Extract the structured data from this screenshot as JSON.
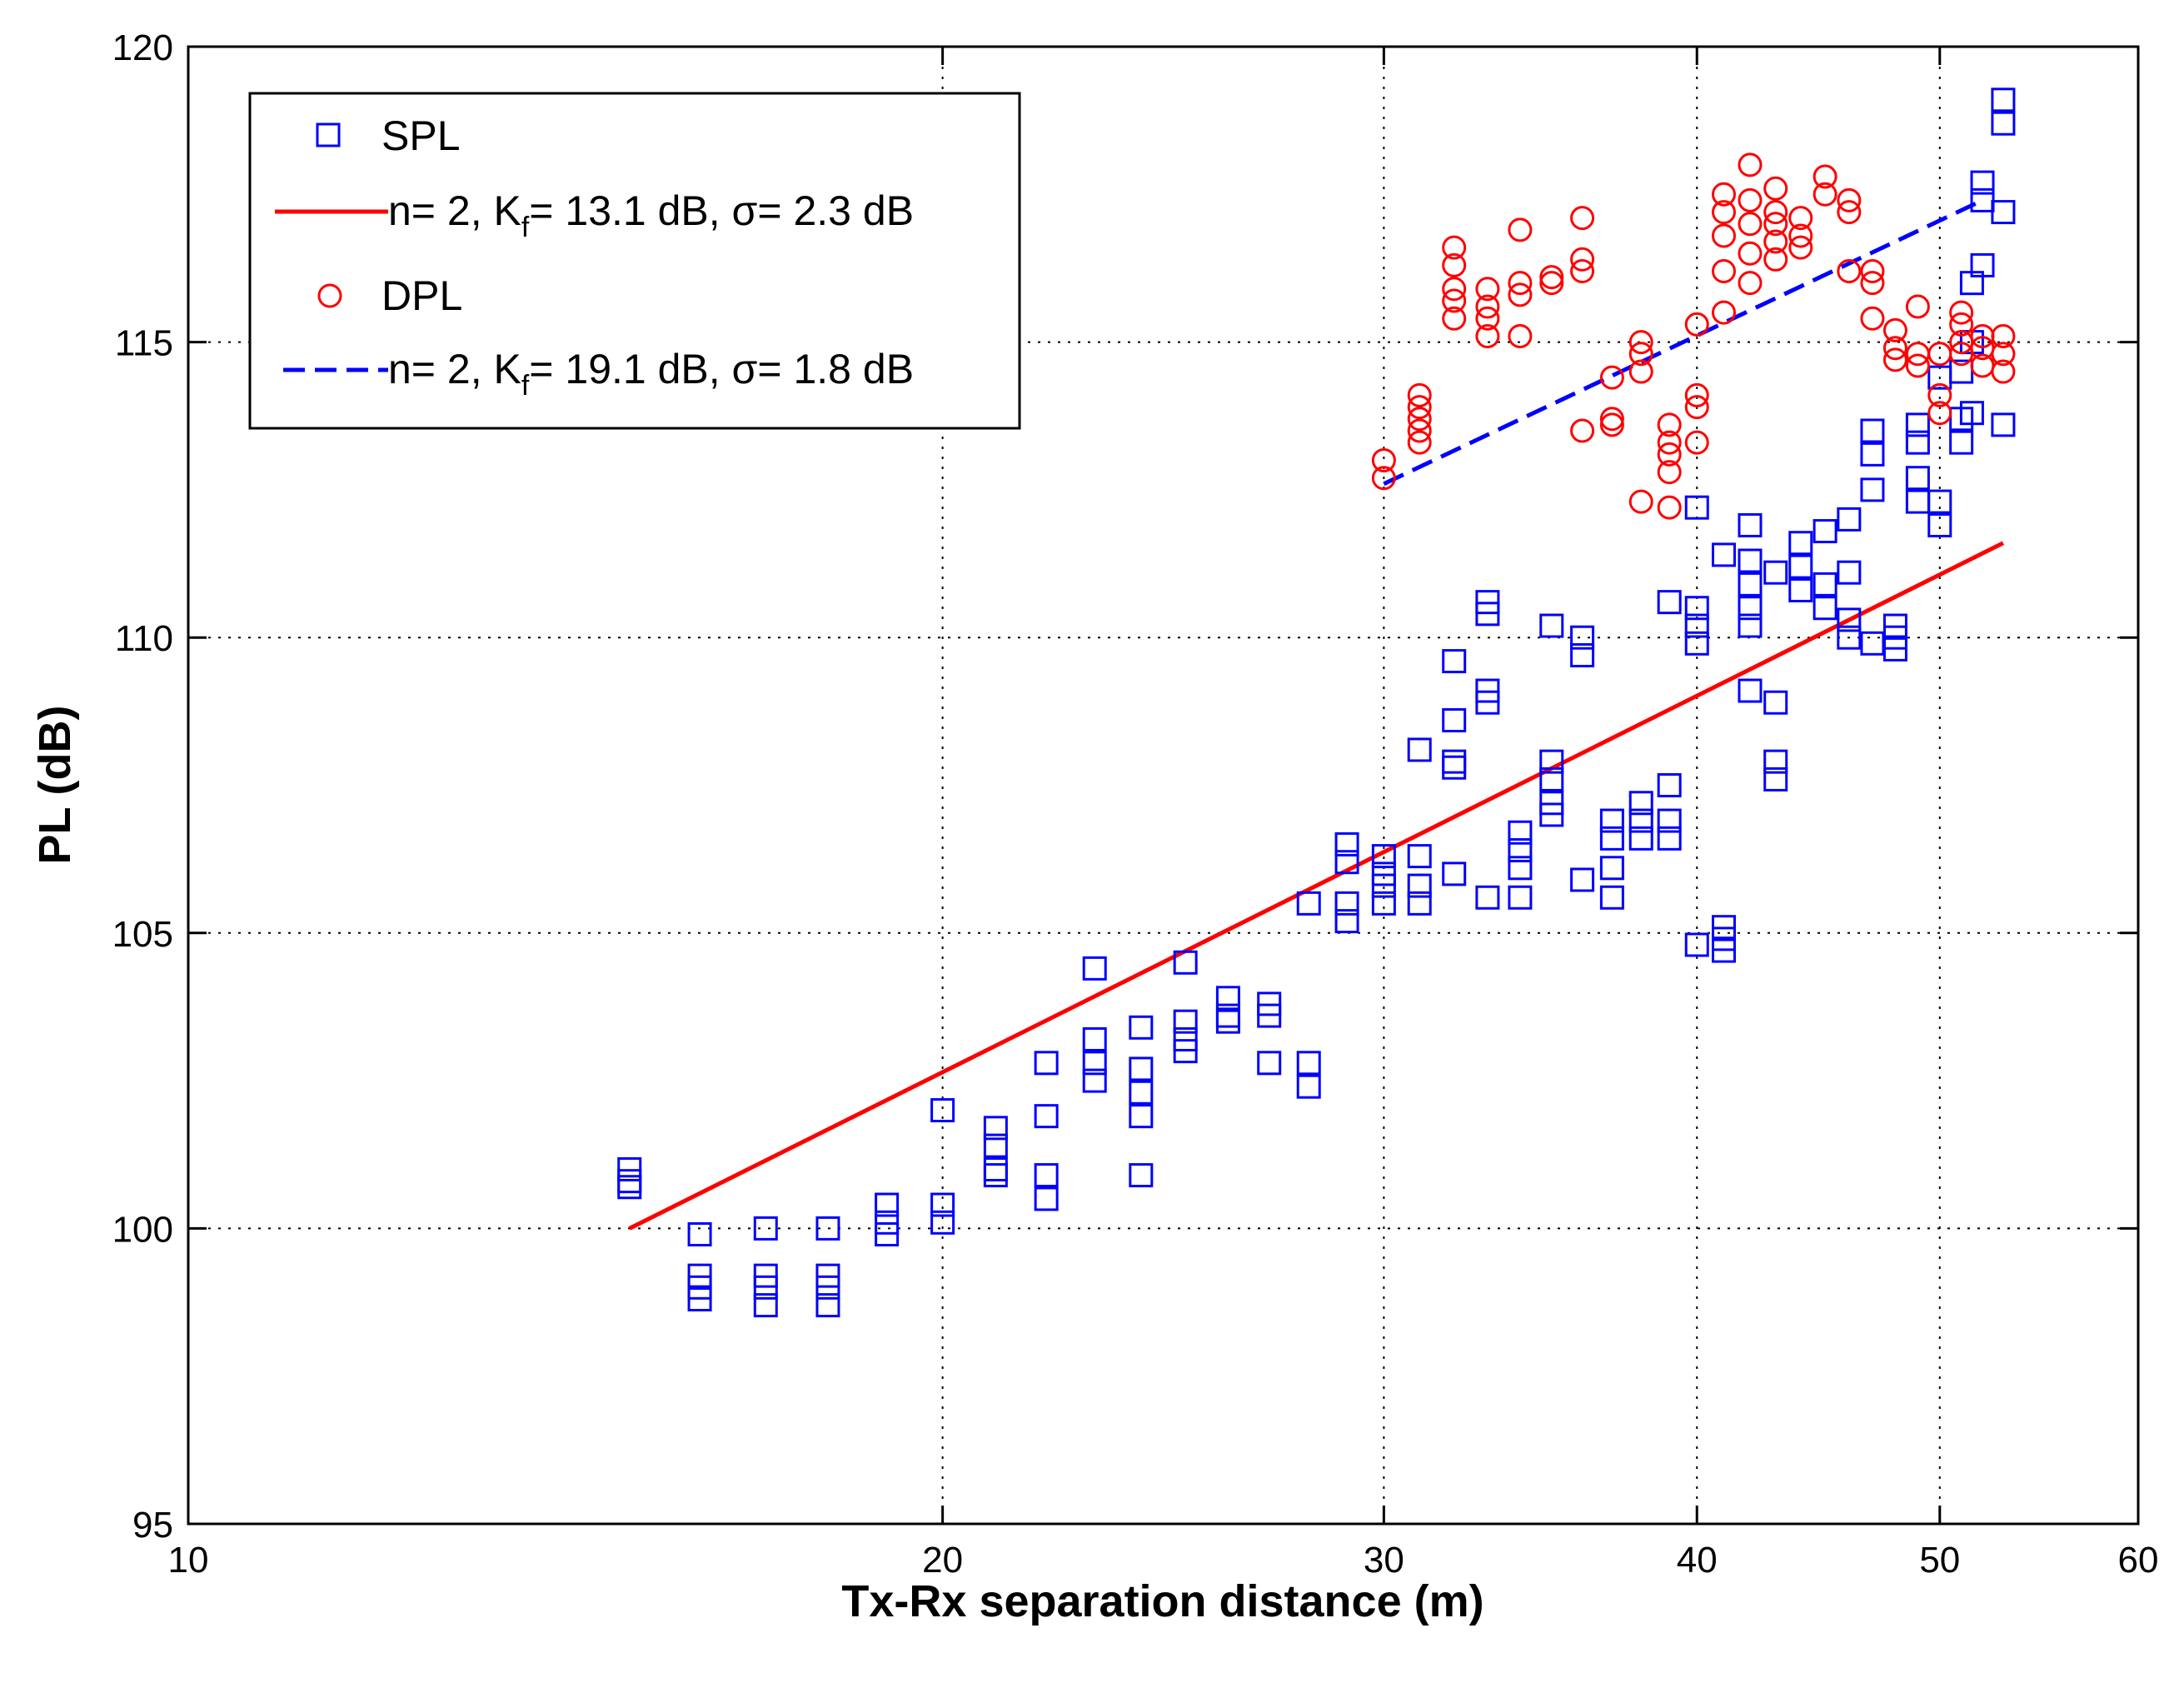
{
  "chart_data": {
    "type": "scatter",
    "title": "",
    "xlabel": "Tx-Rx separation distance (m)",
    "ylabel": "PL (dB)",
    "xscale": "log",
    "xlim": [
      10,
      60
    ],
    "ylim": [
      95,
      120
    ],
    "xticks": [
      10,
      20,
      30,
      40,
      50,
      60
    ],
    "yticks": [
      95,
      100,
      105,
      110,
      115,
      120
    ],
    "grid": true,
    "legend_position": "top-left",
    "legend": [
      {
        "series": "SPL",
        "text": "SPL"
      },
      {
        "series": "SPL fit",
        "pre": "n= 2, K",
        "sub": "f",
        "post": "= 13.1 dB, σ= 2.3 dB"
      },
      {
        "series": "DPL",
        "text": "DPL"
      },
      {
        "series": "DPL fit",
        "pre": "n= 2, K",
        "sub": "f",
        "post": "= 19.1 dB, σ= 1.8 dB"
      }
    ],
    "series": [
      {
        "name": "SPL",
        "kind": "scatter",
        "marker": "square",
        "color": "#0000ff",
        "points": [
          [
            15,
            100.8
          ],
          [
            15,
            101
          ],
          [
            15,
            100.7
          ],
          [
            16,
            99.9
          ],
          [
            16,
            99.2
          ],
          [
            16,
            99
          ],
          [
            16,
            98.8
          ],
          [
            17,
            100
          ],
          [
            17,
            99.2
          ],
          [
            17,
            99
          ],
          [
            17,
            98.7
          ],
          [
            18,
            100
          ],
          [
            18,
            99.2
          ],
          [
            18,
            99
          ],
          [
            18,
            98.7
          ],
          [
            19,
            100.4
          ],
          [
            19,
            100.1
          ],
          [
            19,
            99.9
          ],
          [
            20,
            102
          ],
          [
            20,
            100.4
          ],
          [
            20,
            100.1
          ],
          [
            21,
            101.7
          ],
          [
            21,
            101.4
          ],
          [
            21,
            101
          ],
          [
            21,
            100.9
          ],
          [
            22,
            102.8
          ],
          [
            22,
            101.9
          ],
          [
            22,
            100.9
          ],
          [
            22,
            100.5
          ],
          [
            23,
            104.4
          ],
          [
            23,
            103.2
          ],
          [
            23,
            102.8
          ],
          [
            23,
            102.5
          ],
          [
            24,
            103.4
          ],
          [
            24,
            102.7
          ],
          [
            24,
            102.3
          ],
          [
            24,
            101.9
          ],
          [
            24,
            100.9
          ],
          [
            25,
            104.5
          ],
          [
            25,
            103.5
          ],
          [
            25,
            103.2
          ],
          [
            25,
            103
          ],
          [
            26,
            103.9
          ],
          [
            26,
            103.6
          ],
          [
            26,
            103.5
          ],
          [
            27,
            103.8
          ],
          [
            27,
            103.6
          ],
          [
            27,
            102.8
          ],
          [
            28,
            105.5
          ],
          [
            28,
            102.8
          ],
          [
            28,
            102.4
          ],
          [
            29,
            106.5
          ],
          [
            29,
            106.2
          ],
          [
            29,
            105.5
          ],
          [
            29,
            105.2
          ],
          [
            30,
            106.3
          ],
          [
            30,
            106
          ],
          [
            30,
            105.8
          ],
          [
            30,
            105.5
          ],
          [
            31,
            108.1
          ],
          [
            31,
            106.3
          ],
          [
            31,
            105.8
          ],
          [
            31,
            105.5
          ],
          [
            32,
            109.6
          ],
          [
            32,
            108.6
          ],
          [
            32,
            107.9
          ],
          [
            32,
            107.8
          ],
          [
            32,
            106
          ],
          [
            33,
            110.6
          ],
          [
            33,
            110.4
          ],
          [
            33,
            109.1
          ],
          [
            33,
            108.9
          ],
          [
            33,
            105.6
          ],
          [
            34,
            106.7
          ],
          [
            34,
            106.4
          ],
          [
            34,
            106.1
          ],
          [
            34,
            105.6
          ],
          [
            35,
            110.2
          ],
          [
            35,
            107.9
          ],
          [
            35,
            107.6
          ],
          [
            35,
            107.2
          ],
          [
            35,
            107
          ],
          [
            36,
            110
          ],
          [
            36,
            109.7
          ],
          [
            36,
            105.9
          ],
          [
            37,
            106.9
          ],
          [
            37,
            106.6
          ],
          [
            37,
            106.1
          ],
          [
            37,
            105.6
          ],
          [
            38,
            107.2
          ],
          [
            38,
            106.9
          ],
          [
            38,
            106.6
          ],
          [
            39,
            110.6
          ],
          [
            39,
            107.5
          ],
          [
            39,
            106.9
          ],
          [
            39,
            106.6
          ],
          [
            40,
            110.5
          ],
          [
            40,
            110.2
          ],
          [
            40,
            109.9
          ],
          [
            40,
            112.2
          ],
          [
            40,
            104.8
          ],
          [
            41,
            111.4
          ],
          [
            41,
            105.1
          ],
          [
            41,
            104.9
          ],
          [
            41,
            104.7
          ],
          [
            42,
            111.9
          ],
          [
            42,
            111.3
          ],
          [
            42,
            110.9
          ],
          [
            42,
            110.5
          ],
          [
            42,
            110.2
          ],
          [
            42,
            109.1
          ],
          [
            43,
            111.1
          ],
          [
            43,
            108.9
          ],
          [
            43,
            107.9
          ],
          [
            43,
            107.6
          ],
          [
            44,
            111.6
          ],
          [
            44,
            111.2
          ],
          [
            44,
            110.8
          ],
          [
            45,
            111.8
          ],
          [
            45,
            110.9
          ],
          [
            45,
            110.5
          ],
          [
            46,
            112
          ],
          [
            46,
            111.1
          ],
          [
            46,
            110.3
          ],
          [
            46,
            110
          ],
          [
            47,
            113.5
          ],
          [
            47,
            113.1
          ],
          [
            47,
            112.5
          ],
          [
            47,
            109.9
          ],
          [
            48,
            110.2
          ],
          [
            48,
            110
          ],
          [
            48,
            109.8
          ],
          [
            49,
            113.6
          ],
          [
            49,
            113.3
          ],
          [
            49,
            112.7
          ],
          [
            49,
            112.3
          ],
          [
            50,
            112.3
          ],
          [
            50,
            111.9
          ],
          [
            50,
            114.4
          ],
          [
            51,
            114.5
          ],
          [
            51,
            113.7
          ],
          [
            51,
            113.3
          ],
          [
            51.5,
            116
          ],
          [
            51.5,
            115
          ],
          [
            51.5,
            113.8
          ],
          [
            52,
            117.7
          ],
          [
            52,
            117.4
          ],
          [
            52,
            116.3
          ],
          [
            53,
            119.1
          ],
          [
            53,
            118.7
          ],
          [
            53,
            117.2
          ],
          [
            53,
            113.6
          ]
        ]
      },
      {
        "name": "SPL fit",
        "kind": "line",
        "dash": "solid",
        "color": "#ff0000",
        "x": [
          15,
          53
        ],
        "y": [
          100.0,
          111.6
        ]
      },
      {
        "name": "DPL",
        "kind": "scatter",
        "marker": "circle",
        "color": "#ff0000",
        "points": [
          [
            30,
            113
          ],
          [
            30,
            112.7
          ],
          [
            31,
            114.1
          ],
          [
            31,
            113.9
          ],
          [
            31,
            113.7
          ],
          [
            31,
            113.5
          ],
          [
            31,
            113.3
          ],
          [
            32,
            116.6
          ],
          [
            32,
            116.3
          ],
          [
            32,
            115.9
          ],
          [
            32,
            115.7
          ],
          [
            32,
            115.4
          ],
          [
            33,
            115.9
          ],
          [
            33,
            115.6
          ],
          [
            33,
            115.4
          ],
          [
            33,
            115.1
          ],
          [
            34,
            116.9
          ],
          [
            34,
            116
          ],
          [
            34,
            115.8
          ],
          [
            34,
            115.1
          ],
          [
            35,
            116.1
          ],
          [
            35,
            116
          ],
          [
            36,
            117.1
          ],
          [
            36,
            116.4
          ],
          [
            36,
            116.2
          ],
          [
            36,
            113.5
          ],
          [
            37,
            114.4
          ],
          [
            37,
            113.7
          ],
          [
            37,
            113.6
          ],
          [
            38,
            115
          ],
          [
            38,
            114.8
          ],
          [
            38,
            114.5
          ],
          [
            38,
            112.3
          ],
          [
            39,
            113.6
          ],
          [
            39,
            113.3
          ],
          [
            39,
            113.1
          ],
          [
            39,
            112.8
          ],
          [
            39,
            112.2
          ],
          [
            40,
            115.3
          ],
          [
            40,
            114.1
          ],
          [
            40,
            113.9
          ],
          [
            40,
            113.3
          ],
          [
            41,
            117.5
          ],
          [
            41,
            117.2
          ],
          [
            41,
            116.8
          ],
          [
            41,
            116.2
          ],
          [
            41,
            115.5
          ],
          [
            42,
            118
          ],
          [
            42,
            117.4
          ],
          [
            42,
            117
          ],
          [
            42,
            116.5
          ],
          [
            42,
            116
          ],
          [
            43,
            117.6
          ],
          [
            43,
            117.2
          ],
          [
            43,
            117
          ],
          [
            43,
            116.7
          ],
          [
            43,
            116.4
          ],
          [
            44,
            117.1
          ],
          [
            44,
            116.8
          ],
          [
            44,
            116.6
          ],
          [
            45,
            117.8
          ],
          [
            45,
            117.5
          ],
          [
            46,
            117.4
          ],
          [
            46,
            117.2
          ],
          [
            46,
            116.2
          ],
          [
            47,
            116.2
          ],
          [
            47,
            116
          ],
          [
            47,
            115.4
          ],
          [
            48,
            115.2
          ],
          [
            48,
            114.9
          ],
          [
            48,
            114.7
          ],
          [
            49,
            115.6
          ],
          [
            49,
            114.8
          ],
          [
            49,
            114.6
          ],
          [
            50,
            114.1
          ],
          [
            50,
            113.8
          ],
          [
            50,
            114.8
          ],
          [
            51,
            115.5
          ],
          [
            51,
            115.3
          ],
          [
            51,
            115
          ],
          [
            51,
            114.8
          ],
          [
            52,
            115.1
          ],
          [
            52,
            114.9
          ],
          [
            52,
            114.6
          ],
          [
            53,
            115.1
          ],
          [
            53,
            114.8
          ],
          [
            53,
            114.5
          ]
        ]
      },
      {
        "name": "DPL fit",
        "kind": "line",
        "dash": "dashed",
        "color": "#0000ff",
        "x": [
          30,
          52
        ],
        "y": [
          112.6,
          117.4
        ]
      }
    ]
  }
}
